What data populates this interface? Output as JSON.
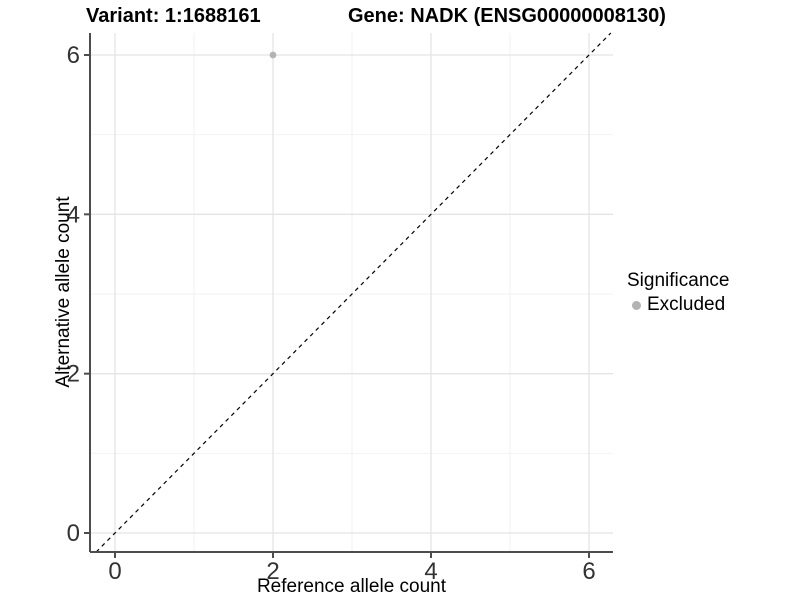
{
  "header": {
    "variant_title": "Variant: 1:1688161",
    "gene_title": "Gene: NADK (ENSG00000008130)"
  },
  "axes": {
    "x_label": "Reference allele count",
    "y_label": "Alternative allele count"
  },
  "legend": {
    "title": "Significance",
    "items": [
      {
        "label": "Excluded",
        "color": "#b3b3b3"
      }
    ]
  },
  "chart_data": {
    "type": "scatter",
    "title": "Variant: 1:1688161    Gene: NADK (ENSG00000008130)",
    "xlabel": "Reference allele count",
    "ylabel": "Alternative allele count",
    "xlim": [
      -0.3165,
      6.3038
    ],
    "ylim": [
      -0.2385,
      6.2762
    ],
    "x_major_ticks": [
      0,
      2,
      4,
      6
    ],
    "y_major_ticks": [
      0,
      2,
      4,
      6
    ],
    "x_minor_ticks": [
      1,
      3,
      5
    ],
    "y_minor_ticks": [
      1,
      3,
      5
    ],
    "grid": true,
    "legend_position": "right",
    "series": [
      {
        "name": "Excluded",
        "color": "#b3b3b3",
        "points": [
          [
            2,
            6
          ]
        ]
      }
    ],
    "reference_line": {
      "type": "abline",
      "slope": 1,
      "intercept": 0,
      "linestyle": "dashed",
      "color": "#000000"
    },
    "colors": {
      "grid_major": "#e4e4e4",
      "grid_minor": "#f2f2f2",
      "axis_line": "#4d4d4d",
      "tick_text": "#333333",
      "background": "#ffffff"
    }
  }
}
